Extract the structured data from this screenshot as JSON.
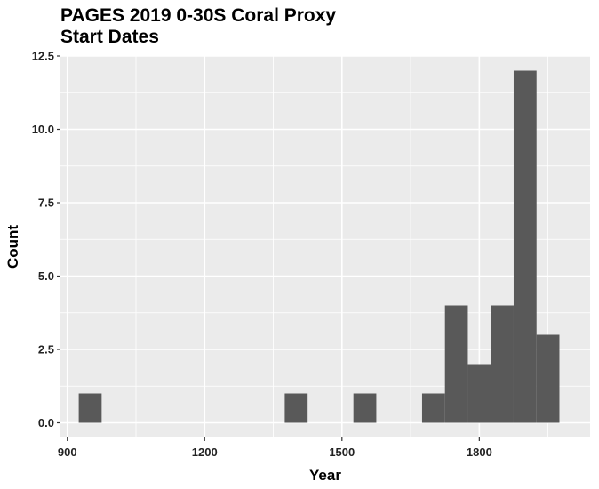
{
  "chart_data": {
    "type": "bar",
    "title_line1": "PAGES 2019 0-30S Coral Proxy",
    "title_line2": "Start Dates",
    "xlabel": "Year",
    "ylabel": "Count",
    "xlim": [
      885,
      2042
    ],
    "ylim": [
      -0.5,
      12.5
    ],
    "x_ticks": [
      900,
      1200,
      1500,
      1800
    ],
    "x_tick_labels": [
      "900",
      "1200",
      "1500",
      "1800"
    ],
    "y_ticks": [
      0,
      2.5,
      5,
      7.5,
      10,
      12.5
    ],
    "y_tick_labels": [
      "0.0",
      "2.5",
      "5.0",
      "7.5",
      "10.0",
      "12.5"
    ],
    "bin_width": 50,
    "bins": [
      {
        "x0": 925,
        "x1": 975,
        "count": 1
      },
      {
        "x0": 1375,
        "x1": 1425,
        "count": 1
      },
      {
        "x0": 1525,
        "x1": 1575,
        "count": 1
      },
      {
        "x0": 1675,
        "x1": 1725,
        "count": 1
      },
      {
        "x0": 1725,
        "x1": 1775,
        "count": 4
      },
      {
        "x0": 1775,
        "x1": 1825,
        "count": 2
      },
      {
        "x0": 1825,
        "x1": 1875,
        "count": 4
      },
      {
        "x0": 1875,
        "x1": 1925,
        "count": 12
      },
      {
        "x0": 1925,
        "x1": 1975,
        "count": 3
      }
    ],
    "grid": true,
    "colors": {
      "panel": "#ebebeb",
      "grid": "#ffffff",
      "bar": "#595959"
    }
  }
}
